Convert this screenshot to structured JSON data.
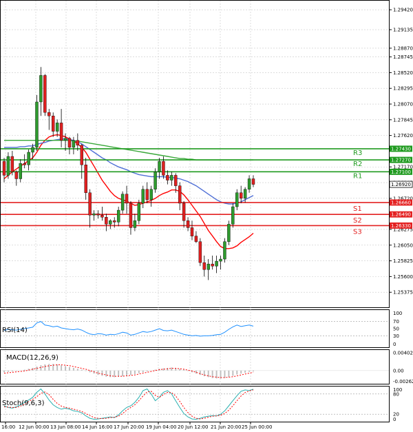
{
  "chart_data": [
    {
      "type": "candlestick",
      "ylim": [
        1.2515,
        1.2955
      ],
      "y_ticks": [
        "1.29420",
        "1.29135",
        "1.28870",
        "1.28745",
        "1.28520",
        "1.28295",
        "1.28070",
        "1.27845",
        "1.27620",
        "1.27170",
        "1.26945",
        "1.26720",
        "1.26275",
        "1.26050",
        "1.25825",
        "1.25600",
        "1.25375"
      ],
      "grid": true,
      "candles": [
        [
          1.2725,
          1.273,
          1.2695,
          1.2705
        ],
        [
          1.2705,
          1.2738,
          1.27,
          1.2732
        ],
        [
          1.2732,
          1.274,
          1.2705,
          1.271
        ],
        [
          1.271,
          1.2712,
          1.269,
          1.27
        ],
        [
          1.27,
          1.2728,
          1.2695,
          1.2722
        ],
        [
          1.2722,
          1.2735,
          1.2715,
          1.272
        ],
        [
          1.272,
          1.2742,
          1.2712,
          1.2738
        ],
        [
          1.2738,
          1.275,
          1.2728,
          1.2745
        ],
        [
          1.2745,
          1.282,
          1.274,
          1.281
        ],
        [
          1.281,
          1.286,
          1.279,
          1.2848
        ],
        [
          1.2848,
          1.285,
          1.279,
          1.2795
        ],
        [
          1.2795,
          1.28,
          1.277,
          1.279
        ],
        [
          1.279,
          1.2795,
          1.276,
          1.2768
        ],
        [
          1.2768,
          1.2785,
          1.276,
          1.278
        ],
        [
          1.278,
          1.28,
          1.2745,
          1.2755
        ],
        [
          1.2755,
          1.2765,
          1.274,
          1.2758
        ],
        [
          1.2758,
          1.276,
          1.2735,
          1.2745
        ],
        [
          1.2745,
          1.276,
          1.2735,
          1.2755
        ],
        [
          1.2755,
          1.2765,
          1.274,
          1.2748
        ],
        [
          1.2748,
          1.275,
          1.27,
          1.272
        ],
        [
          1.272,
          1.273,
          1.267,
          1.268
        ],
        [
          1.268,
          1.2685,
          1.263,
          1.2648
        ],
        [
          1.2648,
          1.2655,
          1.264,
          1.265
        ],
        [
          1.265,
          1.2655,
          1.2643,
          1.2648
        ],
        [
          1.2648,
          1.266,
          1.264,
          1.2645
        ],
        [
          1.2645,
          1.265,
          1.2625,
          1.2635
        ],
        [
          1.2635,
          1.2642,
          1.2628,
          1.264
        ],
        [
          1.264,
          1.2645,
          1.263,
          1.2638
        ],
        [
          1.2638,
          1.266,
          1.2632,
          1.2655
        ],
        [
          1.2655,
          1.2682,
          1.265,
          1.2678
        ],
        [
          1.2678,
          1.269,
          1.265,
          1.2665
        ],
        [
          1.2665,
          1.2668,
          1.262,
          1.263
        ],
        [
          1.263,
          1.265,
          1.2625,
          1.264
        ],
        [
          1.264,
          1.267,
          1.2635,
          1.2665
        ],
        [
          1.2665,
          1.269,
          1.2658,
          1.2685
        ],
        [
          1.2685,
          1.2695,
          1.2665,
          1.267
        ],
        [
          1.267,
          1.269,
          1.266,
          1.2685
        ],
        [
          1.2685,
          1.2715,
          1.268,
          1.271
        ],
        [
          1.271,
          1.273,
          1.27,
          1.2725
        ],
        [
          1.2725,
          1.2732,
          1.27,
          1.2705
        ],
        [
          1.2705,
          1.2712,
          1.2692,
          1.2698
        ],
        [
          1.2698,
          1.271,
          1.269,
          1.2705
        ],
        [
          1.2705,
          1.2708,
          1.268,
          1.269
        ],
        [
          1.269,
          1.2695,
          1.2655,
          1.2665
        ],
        [
          1.2665,
          1.2668,
          1.263,
          1.264
        ],
        [
          1.264,
          1.2645,
          1.2625,
          1.263
        ],
        [
          1.263,
          1.264,
          1.2612,
          1.2618
        ],
        [
          1.2618,
          1.2625,
          1.2608,
          1.261
        ],
        [
          1.261,
          1.2615,
          1.2575,
          1.258
        ],
        [
          1.258,
          1.259,
          1.256,
          1.257
        ],
        [
          1.257,
          1.2585,
          1.2555,
          1.2578
        ],
        [
          1.2578,
          1.259,
          1.257,
          1.2575
        ],
        [
          1.2575,
          1.259,
          1.2565,
          1.2582
        ],
        [
          1.2582,
          1.259,
          1.257,
          1.2585
        ],
        [
          1.2585,
          1.2615,
          1.258,
          1.261
        ],
        [
          1.261,
          1.264,
          1.2605,
          1.2635
        ],
        [
          1.2635,
          1.2665,
          1.263,
          1.266
        ],
        [
          1.266,
          1.2685,
          1.2655,
          1.268
        ],
        [
          1.268,
          1.269,
          1.2665,
          1.2672
        ],
        [
          1.2672,
          1.2688,
          1.2666,
          1.2685
        ],
        [
          1.2685,
          1.2705,
          1.268,
          1.27
        ],
        [
          1.27,
          1.2705,
          1.2688,
          1.2692
        ]
      ],
      "moving_averages": [
        {
          "color": "#ff0000",
          "values": [
            1.27,
            1.2705,
            1.271,
            1.2714,
            1.2718,
            1.2722,
            1.2726,
            1.273,
            1.2738,
            1.2748,
            1.2755,
            1.276,
            1.2762,
            1.2763,
            1.2762,
            1.276,
            1.2757,
            1.2754,
            1.275,
            1.2745,
            1.2738,
            1.2728,
            1.2718,
            1.2708,
            1.2698,
            1.269,
            1.2682,
            1.2676,
            1.2672,
            1.267,
            1.2668,
            1.2665,
            1.2662,
            1.2663,
            1.2665,
            1.2667,
            1.2669,
            1.2672,
            1.2676,
            1.2679,
            1.2681,
            1.2684,
            1.2684,
            1.2682,
            1.2677,
            1.267,
            1.2662,
            1.2654,
            1.2646,
            1.2636,
            1.2626,
            1.2618,
            1.261,
            1.2603,
            1.26,
            1.26,
            1.2601,
            1.2604,
            1.2609,
            1.2613,
            1.2617,
            1.2622
          ]
        },
        {
          "color": "#4f6fd6",
          "values": [
            1.2745,
            1.2745,
            1.2745,
            1.2745,
            1.2746,
            1.2746,
            1.2747,
            1.2747,
            1.2749,
            1.2751,
            1.2752,
            1.2754,
            1.2755,
            1.2756,
            1.2757,
            1.2757,
            1.2756,
            1.2755,
            1.2753,
            1.275,
            1.2746,
            1.2742,
            1.2738,
            1.2734,
            1.273,
            1.2727,
            1.2723,
            1.272,
            1.2717,
            1.2715,
            1.2713,
            1.271,
            1.2708,
            1.2706,
            1.2705,
            1.2704,
            1.2703,
            1.2703,
            1.2703,
            1.2703,
            1.2702,
            1.2702,
            1.2701,
            1.27,
            1.2698,
            1.2696,
            1.2693,
            1.269,
            1.2686,
            1.2682,
            1.2678,
            1.2674,
            1.267,
            1.2667,
            1.2665,
            1.2664,
            1.2664,
            1.2665,
            1.2667,
            1.267,
            1.2673,
            1.2676
          ]
        },
        {
          "color": "#3aa83a",
          "values": [
            1.2755,
            1.2755,
            1.2755,
            1.2755,
            1.2755,
            1.2755,
            1.2755,
            1.2755,
            1.2755,
            1.2755,
            1.2755,
            1.2755,
            1.2755,
            1.2755,
            1.2755,
            1.2755,
            1.2755,
            1.2754,
            1.2754,
            1.2753,
            1.2752,
            1.2751,
            1.275,
            1.2749,
            1.2748,
            1.2747,
            1.2746,
            1.2745,
            1.2744,
            1.2743,
            1.2742,
            1.2741,
            1.274,
            1.2739,
            1.2738,
            1.2737,
            1.2736,
            1.2735,
            1.2734,
            1.2733,
            1.2732,
            1.2731,
            1.273,
            1.2729,
            1.2729,
            1.2728,
            1.2728,
            1.2727,
            1.2727,
            1.2727,
            1.2727,
            1.2727,
            1.2727,
            1.2727,
            1.2727,
            1.2727,
            1.2727,
            1.2727,
            1.2727,
            1.2727,
            1.2727,
            1.2727
          ]
        }
      ],
      "levels": [
        {
          "label": "R3",
          "value": 1.2743,
          "tag": "1.27430",
          "color": "#1f9a1f"
        },
        {
          "label": "R2",
          "value": 1.2727,
          "tag": "1.27270",
          "color": "#1f9a1f"
        },
        {
          "label": "R1",
          "value": 1.271,
          "tag": "1.27100",
          "color": "#1f9a1f"
        },
        {
          "label": "S1",
          "value": 1.2666,
          "tag": "1.26660",
          "color": "#e32020"
        },
        {
          "label": "S2",
          "value": 1.2649,
          "tag": "1.26490",
          "color": "#e32020"
        },
        {
          "label": "S3",
          "value": 1.2633,
          "tag": "1.26330",
          "color": "#e32020"
        }
      ],
      "current_price": {
        "value": 1.2692,
        "tag": "1.26920"
      }
    },
    {
      "type": "line",
      "title": "RSI(14)",
      "ylim": [
        0,
        100
      ],
      "y_ticks": [
        "100",
        "70",
        "50",
        "30",
        "0"
      ],
      "levels": [
        70,
        30
      ],
      "series": [
        {
          "color": "#1e90ff",
          "values": [
            45,
            48,
            47,
            46,
            48,
            50,
            52,
            54,
            66,
            70,
            60,
            58,
            55,
            57,
            52,
            50,
            48,
            47,
            49,
            46,
            40,
            35,
            33,
            36,
            35,
            32,
            34,
            33,
            36,
            40,
            38,
            32,
            34,
            38,
            42,
            40,
            42,
            46,
            50,
            45,
            44,
            46,
            42,
            38,
            34,
            32,
            30,
            31,
            29,
            30,
            30,
            31,
            33,
            34,
            40,
            48,
            55,
            60,
            56,
            58,
            60,
            57
          ]
        }
      ]
    },
    {
      "type": "bar",
      "title": "MACD(12,26,9)",
      "ylim": [
        -0.003,
        0.0045
      ],
      "y_ticks": [
        "0.004022",
        "0.00",
        "-0.002627"
      ],
      "series": [
        {
          "name": "",
          "color": "#c0c0c0",
          "values": [
            -0.0004,
            -0.0003,
            -0.0002,
            -0.0001,
            0.0,
            0.0002,
            0.0004,
            0.0006,
            0.0009,
            0.0012,
            0.0014,
            0.0015,
            0.0015,
            0.0014,
            0.0012,
            0.001,
            0.0008,
            0.0006,
            0.0004,
            0.0002,
            -0.0001,
            -0.0004,
            -0.0007,
            -0.001,
            -0.0012,
            -0.0014,
            -0.0015,
            -0.0015,
            -0.0014,
            -0.0013,
            -0.0011,
            -0.001,
            -0.0008,
            -0.0006,
            -0.0004,
            -0.0002,
            0.0,
            0.0002,
            0.0004,
            0.0005,
            0.0006,
            0.0007,
            0.0006,
            0.0004,
            0.0002,
            -0.0001,
            -0.0004,
            -0.0007,
            -0.001,
            -0.0013,
            -0.0015,
            -0.0017,
            -0.0018,
            -0.0018,
            -0.0017,
            -0.0015,
            -0.0012,
            -0.0009,
            -0.0007,
            -0.0005,
            -0.0003,
            -0.0002
          ]
        },
        {
          "name": "",
          "color": "#ff0000",
          "values": [
            -0.0006,
            -0.0005,
            -0.0004,
            -0.0003,
            -0.0002,
            -0.0001,
            0.0001,
            0.0003,
            0.0005,
            0.0007,
            0.0009,
            0.0011,
            0.0012,
            0.0013,
            0.0013,
            0.0012,
            0.0011,
            0.0009,
            0.0007,
            0.0005,
            0.0003,
            0.0,
            -0.0003,
            -0.0006,
            -0.0008,
            -0.001,
            -0.0012,
            -0.0013,
            -0.0013,
            -0.0013,
            -0.0012,
            -0.0011,
            -0.001,
            -0.0008,
            -0.0006,
            -0.0004,
            -0.0002,
            0.0,
            0.0002,
            0.0003,
            0.0004,
            0.0005,
            0.0005,
            0.0004,
            0.0003,
            0.0001,
            -0.0001,
            -0.0004,
            -0.0007,
            -0.001,
            -0.0012,
            -0.0014,
            -0.0015,
            -0.0016,
            -0.0016,
            -0.0015,
            -0.0014,
            -0.0012,
            -0.001,
            -0.0008,
            -0.0006,
            -0.0004
          ]
        }
      ]
    },
    {
      "type": "line",
      "title": "Stoch(9,6,3)",
      "ylim": [
        0,
        100
      ],
      "y_ticks": [
        "100",
        "80",
        "20",
        "0"
      ],
      "levels": [
        80,
        20
      ],
      "series": [
        {
          "color": "#2ab0b0",
          "values": [
            45,
            40,
            38,
            42,
            48,
            55,
            62,
            70,
            85,
            95,
            80,
            62,
            48,
            40,
            35,
            38,
            35,
            30,
            28,
            24,
            15,
            8,
            5,
            6,
            8,
            10,
            12,
            10,
            18,
            30,
            40,
            45,
            55,
            70,
            90,
            95,
            80,
            60,
            70,
            85,
            90,
            80,
            60,
            40,
            22,
            12,
            6,
            5,
            8,
            12,
            14,
            16,
            15,
            20,
            30,
            45,
            60,
            75,
            88,
            92,
            90,
            94
          ]
        },
        {
          "color": "#ff0000",
          "values": [
            42,
            41,
            40,
            40,
            44,
            50,
            58,
            64,
            72,
            82,
            86,
            78,
            64,
            52,
            44,
            40,
            38,
            35,
            32,
            28,
            22,
            16,
            10,
            8,
            7,
            8,
            10,
            11,
            14,
            22,
            32,
            40,
            48,
            60,
            74,
            86,
            88,
            76,
            70,
            78,
            85,
            84,
            74,
            58,
            40,
            25,
            14,
            8,
            6,
            8,
            11,
            14,
            15,
            17,
            22,
            32,
            45,
            60,
            74,
            84,
            89,
            92
          ]
        }
      ]
    }
  ],
  "x_labels": [
    "16:00",
    "12 Jun 00:00",
    "13 Jun 08:00",
    "14 Jun 16:00",
    "17 Jun 20:00",
    "19 Jun 04:00",
    "20 Jun 12:00",
    "21 Jun 20:00",
    "25 Jun 00:00"
  ],
  "colors": {
    "bull": "#2e9b2e",
    "bear": "#e02020",
    "wick": "#000000",
    "frame": "#000000",
    "grid": "#c8c8c8"
  }
}
